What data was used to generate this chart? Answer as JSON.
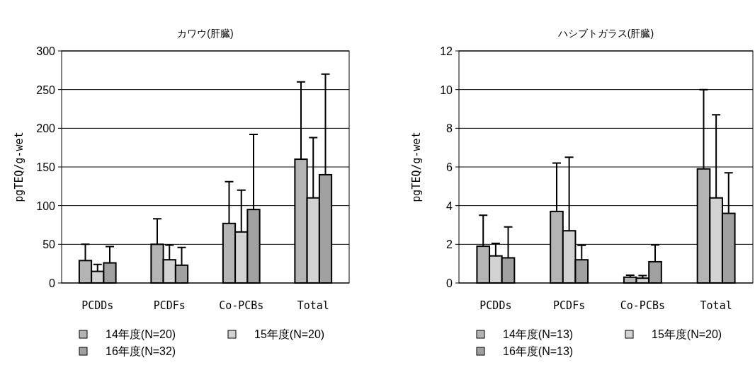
{
  "chart_data": [
    {
      "type": "bar",
      "title": "カワウ(肝臓)",
      "ylabel": "pgTEQ/g-wet",
      "categories": [
        "PCDDs",
        "PCDFs",
        "Co-PCBs",
        "Total"
      ],
      "ylim": [
        0,
        300
      ],
      "yticks": [
        0,
        50,
        100,
        150,
        200,
        250,
        300
      ],
      "grid": "y",
      "legend": "bottom",
      "series": [
        {
          "name": "14年度(N=20)",
          "color": "#b4b4b4",
          "values": [
            29,
            50,
            77,
            160
          ],
          "errors": [
            [
              29,
              50
            ],
            [
              50,
              83
            ],
            [
              77,
              131
            ],
            [
              160,
              260
            ]
          ]
        },
        {
          "name": "15年度(N=20)",
          "color": "#d2d2d2",
          "values": [
            15,
            30,
            66,
            110
          ],
          "errors": [
            [
              15,
              24
            ],
            [
              30,
              49
            ],
            [
              66,
              120
            ],
            [
              110,
              188
            ]
          ]
        },
        {
          "name": "16年度(N=32)",
          "color": "#a0a0a0",
          "values": [
            26,
            23,
            95,
            140
          ],
          "errors": [
            [
              26,
              47
            ],
            [
              23,
              46
            ],
            [
              95,
              192
            ],
            [
              140,
              270
            ]
          ]
        }
      ]
    },
    {
      "type": "bar",
      "title": "ハシブトガラス(肝臓)",
      "ylabel": "pgTEQ/g-wet",
      "categories": [
        "PCDDs",
        "PCDFs",
        "Co-PCBs",
        "Total"
      ],
      "ylim": [
        0,
        12
      ],
      "yticks": [
        0,
        2,
        4,
        6,
        8,
        10,
        12
      ],
      "grid": "y",
      "legend": "bottom",
      "series": [
        {
          "name": "14年度(N=13)",
          "color": "#b4b4b4",
          "values": [
            1.9,
            3.7,
            0.3,
            5.9
          ],
          "errors": [
            [
              1.9,
              3.5
            ],
            [
              3.7,
              6.2
            ],
            [
              0.3,
              0.4
            ],
            [
              5.9,
              10.0
            ]
          ]
        },
        {
          "name": "15年度(N=20)",
          "color": "#d2d2d2",
          "values": [
            1.4,
            2.7,
            0.25,
            4.4
          ],
          "errors": [
            [
              1.4,
              2.05
            ],
            [
              2.7,
              6.5
            ],
            [
              0.25,
              0.38
            ],
            [
              4.4,
              8.7
            ]
          ]
        },
        {
          "name": "16年度(N=13)",
          "color": "#a0a0a0",
          "values": [
            1.3,
            1.2,
            1.1,
            3.6
          ],
          "errors": [
            [
              1.3,
              2.9
            ],
            [
              1.2,
              1.95
            ],
            [
              1.1,
              1.97
            ],
            [
              3.6,
              5.7
            ]
          ]
        }
      ]
    }
  ]
}
